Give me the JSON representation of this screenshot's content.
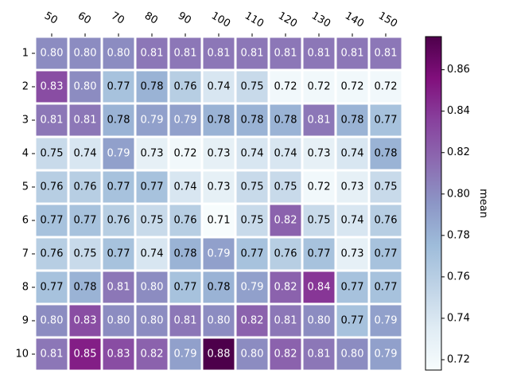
{
  "chart_data": {
    "type": "heatmap",
    "title": "",
    "xlabel": "",
    "ylabel": "",
    "x_categories": [
      "50",
      "60",
      "70",
      "80",
      "90",
      "100",
      "110",
      "120",
      "130",
      "140",
      "150"
    ],
    "y_categories": [
      "1",
      "2",
      "3",
      "4",
      "5",
      "6",
      "7",
      "8",
      "9",
      "10"
    ],
    "values": [
      [
        0.8,
        0.8,
        0.8,
        0.81,
        0.81,
        0.81,
        0.81,
        0.81,
        0.81,
        0.81,
        0.81
      ],
      [
        0.83,
        0.8,
        0.77,
        0.78,
        0.76,
        0.74,
        0.75,
        0.72,
        0.72,
        0.72,
        0.72
      ],
      [
        0.81,
        0.81,
        0.78,
        0.79,
        0.79,
        0.78,
        0.78,
        0.78,
        0.81,
        0.78,
        0.77
      ],
      [
        0.75,
        0.74,
        0.79,
        0.73,
        0.72,
        0.73,
        0.74,
        0.74,
        0.73,
        0.74,
        0.78
      ],
      [
        0.76,
        0.76,
        0.77,
        0.77,
        0.74,
        0.73,
        0.75,
        0.75,
        0.72,
        0.73,
        0.75
      ],
      [
        0.77,
        0.77,
        0.76,
        0.75,
        0.76,
        0.71,
        0.75,
        0.82,
        0.75,
        0.74,
        0.76
      ],
      [
        0.76,
        0.75,
        0.77,
        0.74,
        0.78,
        0.79,
        0.77,
        0.76,
        0.77,
        0.73,
        0.77
      ],
      [
        0.77,
        0.78,
        0.81,
        0.8,
        0.77,
        0.78,
        0.79,
        0.82,
        0.84,
        0.77,
        0.77
      ],
      [
        0.8,
        0.83,
        0.8,
        0.8,
        0.81,
        0.8,
        0.82,
        0.81,
        0.8,
        0.77,
        0.79
      ],
      [
        0.81,
        0.85,
        0.83,
        0.82,
        0.79,
        0.88,
        0.8,
        0.82,
        0.81,
        0.8,
        0.79
      ]
    ],
    "colormap": "BuPu",
    "vmin": 0.715,
    "vmax": 0.876,
    "x_tick_rotation": "slanted, top",
    "colorbar": {
      "label": "mean",
      "ticks": [
        "0.72",
        "0.74",
        "0.76",
        "0.78",
        "0.80",
        "0.82",
        "0.84",
        "0.86"
      ],
      "placement": "right"
    },
    "cell_label_colors": {
      "dark": "#000000",
      "light": "#ffffff"
    },
    "grid": "white cell borders"
  }
}
